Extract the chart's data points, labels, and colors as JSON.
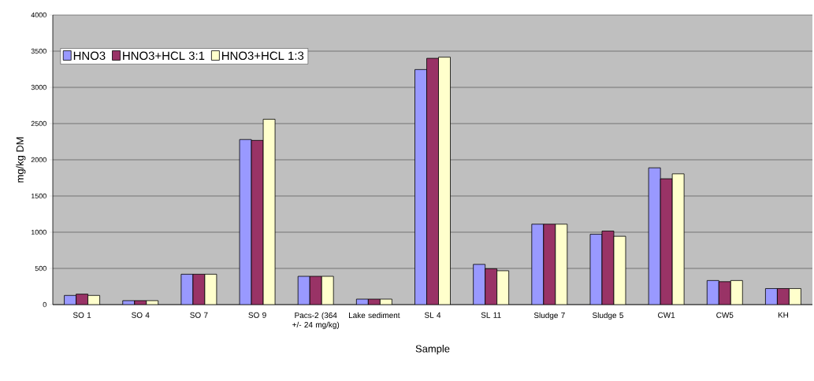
{
  "chart_data": {
    "type": "bar",
    "xlabel": "Sample",
    "ylabel": "mg/kg DM",
    "categories": [
      "SO 1",
      "SO 4",
      "SO 7",
      "SO 9",
      "Pacs-2 (364 +/- 24 mg/kg)",
      "Lake sediment",
      "SL 4",
      "SL 11",
      "Sludge 7",
      "Sludge 5",
      "CW1",
      "CW5",
      "KH"
    ],
    "series": [
      {
        "name": "HNO3",
        "color": "#9999ff",
        "values": [
          127,
          55,
          420,
          2280,
          391,
          76,
          3246,
          556,
          1111,
          972,
          1889,
          333,
          222
        ]
      },
      {
        "name": "HNO3+HCL 3:1",
        "color": "#993366",
        "values": [
          145,
          55,
          420,
          2268,
          391,
          76,
          3401,
          496,
          1111,
          1016,
          1738,
          317,
          222
        ]
      },
      {
        "name": "HNO3+HCL 1:3",
        "color": "#ffffcc",
        "values": [
          127,
          55,
          420,
          2560,
          391,
          76,
          3417,
          468,
          1111,
          944,
          1806,
          333,
          222
        ]
      }
    ],
    "ylim": [
      0,
      4000
    ],
    "yticks": [
      0,
      500,
      1000,
      1500,
      2000,
      2500,
      3000,
      3500,
      4000
    ],
    "grid": "y",
    "legend": "top left"
  }
}
